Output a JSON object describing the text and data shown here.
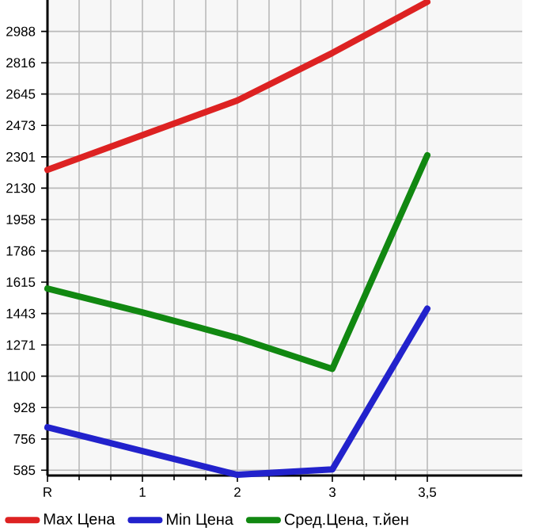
{
  "chart_data": {
    "type": "line",
    "categories": [
      "R",
      "1",
      "2",
      "3",
      "3,5"
    ],
    "ylim": [
      556,
      3160
    ],
    "yticks": [
      585,
      756,
      928,
      1100,
      1271,
      1443,
      1615,
      1786,
      1958,
      2130,
      2301,
      2473,
      2645,
      2816,
      2988
    ],
    "grid": true,
    "legend": "bottom",
    "marker": "none",
    "line_style": "solid",
    "series": [
      {
        "name": "Max Цена",
        "color": "#dd2222",
        "values": [
          2230,
          2420,
          2610,
          2870,
          3150
        ]
      },
      {
        "name": "Min Цена",
        "color": "#2222cc",
        "values": [
          820,
          690,
          560,
          590,
          1470
        ]
      },
      {
        "name": "Сред.Цена, т.йен",
        "color": "#118811",
        "values": [
          1580,
          1450,
          1310,
          1140,
          2310
        ]
      }
    ]
  }
}
